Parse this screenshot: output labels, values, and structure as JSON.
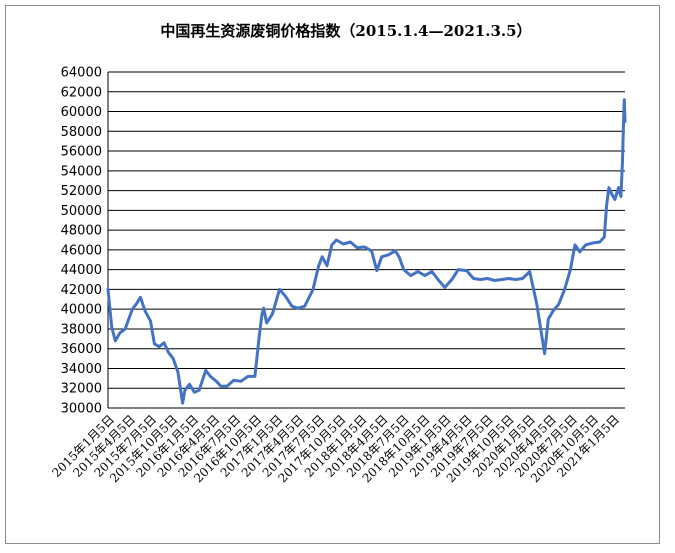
{
  "chart_data": {
    "type": "line",
    "title": "中国再生资源废铜价格指数（2015.1.4—2021.3.5）",
    "xlabel": "",
    "ylabel": "",
    "ylim": [
      30000,
      64000
    ],
    "yticks": [
      30000,
      32000,
      34000,
      36000,
      38000,
      40000,
      42000,
      44000,
      46000,
      48000,
      50000,
      52000,
      54000,
      56000,
      58000,
      60000,
      62000,
      64000
    ],
    "ytick_labels": [
      "30000",
      "32000",
      "34000",
      "36000",
      "38000",
      "40000",
      "42000",
      "44000",
      "46000",
      "48000",
      "50000",
      "52000",
      "54000",
      "56000",
      "58000",
      "60000",
      "62000",
      "64000"
    ],
    "xtick_labels": [
      "2015年1月5日",
      "2015年4月5日",
      "2015年7月5日",
      "2015年10月5日",
      "2016年1月5日",
      "2016年4月5日",
      "2016年7月5日",
      "2016年10月5日",
      "2017年1月5日",
      "2017年4月5日",
      "2017年7月5日",
      "2017年10月5日",
      "2018年1月5日",
      "2018年4月5日",
      "2018年7月5日",
      "2018年10月5日",
      "2019年1月5日",
      "2019年4月5日",
      "2019年7月5日",
      "2019年10月5日",
      "2020年1月5日",
      "2020年4月5日",
      "2020年7月5日",
      "2020年10月5日",
      "2021年1月5日"
    ],
    "grid": true,
    "legend": "none",
    "line_color": "#4472c4",
    "series": [
      {
        "x": [
          "2015-01-04",
          "2015-01-20",
          "2015-02-05",
          "2015-02-25",
          "2015-03-20",
          "2015-04-20",
          "2015-05-10",
          "2015-05-25",
          "2015-06-15",
          "2015-07-08",
          "2015-07-25",
          "2015-08-15",
          "2015-09-05",
          "2015-09-25",
          "2015-10-15",
          "2015-11-05",
          "2015-11-25",
          "2015-12-05",
          "2015-12-25",
          "2016-01-15",
          "2016-02-05",
          "2016-03-05",
          "2016-03-25",
          "2016-04-20",
          "2016-05-10",
          "2016-06-05",
          "2016-07-05",
          "2016-08-05",
          "2016-09-05",
          "2016-10-05",
          "2016-10-25",
          "2016-11-05",
          "2016-11-12",
          "2016-11-25",
          "2016-12-20",
          "2017-01-20",
          "2017-02-15",
          "2017-03-15",
          "2017-04-10",
          "2017-05-10",
          "2017-06-15",
          "2017-07-10",
          "2017-07-25",
          "2017-08-15",
          "2017-09-05",
          "2017-09-25",
          "2017-10-25",
          "2017-11-25",
          "2017-12-25",
          "2018-01-25",
          "2018-02-25",
          "2018-03-20",
          "2018-04-10",
          "2018-05-10",
          "2018-06-08",
          "2018-06-25",
          "2018-07-15",
          "2018-08-15",
          "2018-09-15",
          "2018-10-15",
          "2018-11-15",
          "2018-12-15",
          "2019-01-10",
          "2019-02-10",
          "2019-03-10",
          "2019-04-15",
          "2019-05-15",
          "2019-06-15",
          "2019-07-15",
          "2019-08-15",
          "2019-09-15",
          "2019-10-15",
          "2019-11-15",
          "2019-12-15",
          "2020-01-15",
          "2020-02-15",
          "2020-03-20",
          "2020-04-05",
          "2020-04-25",
          "2020-05-20",
          "2020-06-15",
          "2020-07-10",
          "2020-07-30",
          "2020-08-20",
          "2020-09-15",
          "2020-10-15",
          "2020-11-15",
          "2020-12-05",
          "2020-12-15",
          "2020-12-25",
          "2021-01-05",
          "2021-01-20",
          "2021-02-05",
          "2021-02-15",
          "2021-02-22",
          "2021-02-26",
          "2021-03-02",
          "2021-03-05"
        ],
        "values": [
          42000,
          38200,
          36800,
          37600,
          38000,
          40000,
          40600,
          41200,
          39800,
          38800,
          36500,
          36200,
          36600,
          35600,
          35000,
          33600,
          30500,
          31800,
          32400,
          31600,
          31800,
          33800,
          33200,
          32700,
          32200,
          32200,
          32800,
          32700,
          33200,
          33200,
          37500,
          39500,
          40100,
          38600,
          39500,
          42000,
          41300,
          40300,
          40100,
          40300,
          42000,
          44400,
          45300,
          44400,
          46500,
          47000,
          46600,
          46800,
          46200,
          46300,
          45900,
          43900,
          45300,
          45500,
          45900,
          45300,
          44000,
          43400,
          43800,
          43400,
          43800,
          42900,
          42200,
          43000,
          44000,
          43900,
          43100,
          43000,
          43100,
          42900,
          43000,
          43100,
          43000,
          43100,
          43800,
          40500,
          35500,
          39000,
          39800,
          40500,
          42000,
          44000,
          46500,
          45800,
          46500,
          46700,
          46800,
          47300,
          50500,
          52300,
          51700,
          51100,
          52300,
          51400,
          55000,
          58500,
          61200,
          59000
        ]
      }
    ]
  }
}
